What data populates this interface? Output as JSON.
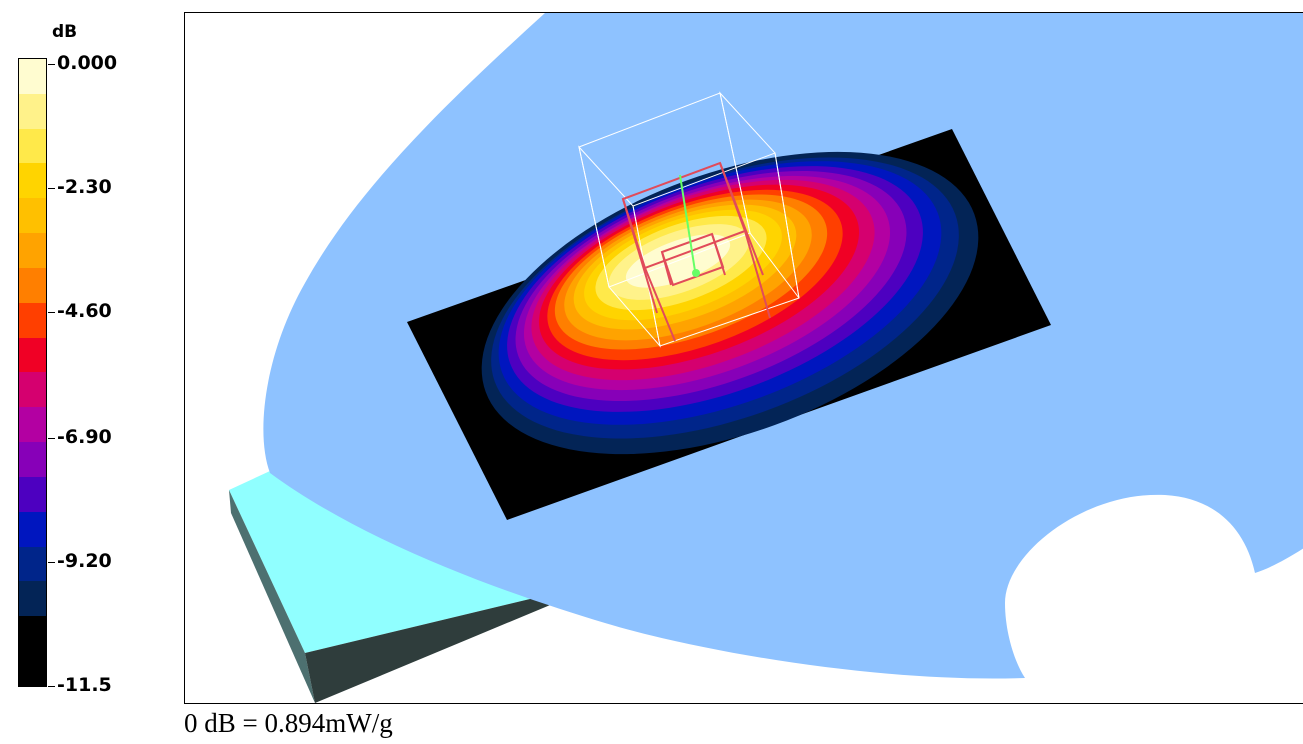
{
  "colorbar": {
    "unit_label": "dB",
    "tick_labels": [
      "0.000",
      "-2.30",
      "-4.60",
      "-6.90",
      "-9.20",
      "-11.5"
    ],
    "band_colors": [
      "#fffcd0",
      "#fff28a",
      "#ffe94a",
      "#ffd400",
      "#ffc000",
      "#ffa300",
      "#ff7f00",
      "#ff3f00",
      "#f00025",
      "#d5006f",
      "#b300a2",
      "#8700b8",
      "#4d00c0",
      "#0016bf",
      "#00258a",
      "#032456",
      "#000000",
      "#000000"
    ]
  },
  "footer_note": "0 dB = 0.894mW/g",
  "scene": {
    "phantom_color": "#8ec2ff",
    "base_top_color": "#90ffff",
    "base_side_color": "#2f3d3c",
    "base_front_color": "#4d7070",
    "probe_outline_color": "#ffffff",
    "device_outline_color": "#e14b5a",
    "axis_marker_color": "#66ff66"
  }
}
